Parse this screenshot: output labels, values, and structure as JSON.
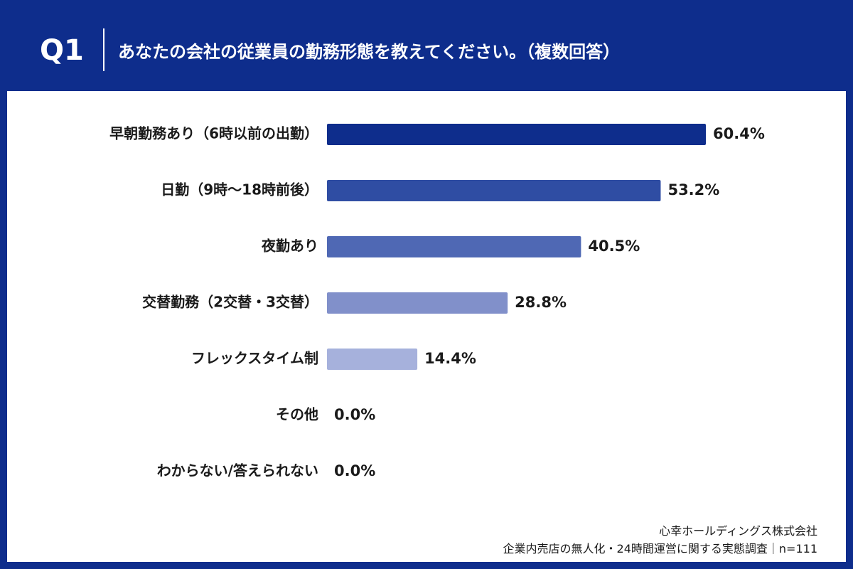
{
  "header": {
    "number": "Q1",
    "question": "あなたの会社の従業員の勤務形態を教えてください。（複数回答）"
  },
  "chart_data": {
    "type": "bar",
    "orientation": "horizontal",
    "categories": [
      "早朝勤務あり（6時以前の出勤）",
      "日勤（9時〜18時前後）",
      "夜勤あり",
      "交替勤務（2交替・3交替）",
      "フレックスタイム制",
      "その他",
      "わからない/答えられない"
    ],
    "values": [
      60.4,
      53.2,
      40.5,
      28.8,
      14.4,
      0.0,
      0.0
    ],
    "value_labels": [
      "60.4%",
      "53.2%",
      "40.5%",
      "28.8%",
      "14.4%",
      "0.0%",
      "0.0%"
    ],
    "bar_colors": [
      "#0e2d8c",
      "#2f4da3",
      "#4f68b4",
      "#8190ca",
      "#a6b1dc",
      "#c4cbe8",
      "#c4cbe8"
    ],
    "unit": "%",
    "xlim": [
      0,
      60.4
    ],
    "grid": false,
    "legend": "none"
  },
  "footer": {
    "company": "心幸ホールディングス株式会社",
    "survey": "企業内売店の無人化・24時間運営に関する実態調査｜n=111"
  }
}
